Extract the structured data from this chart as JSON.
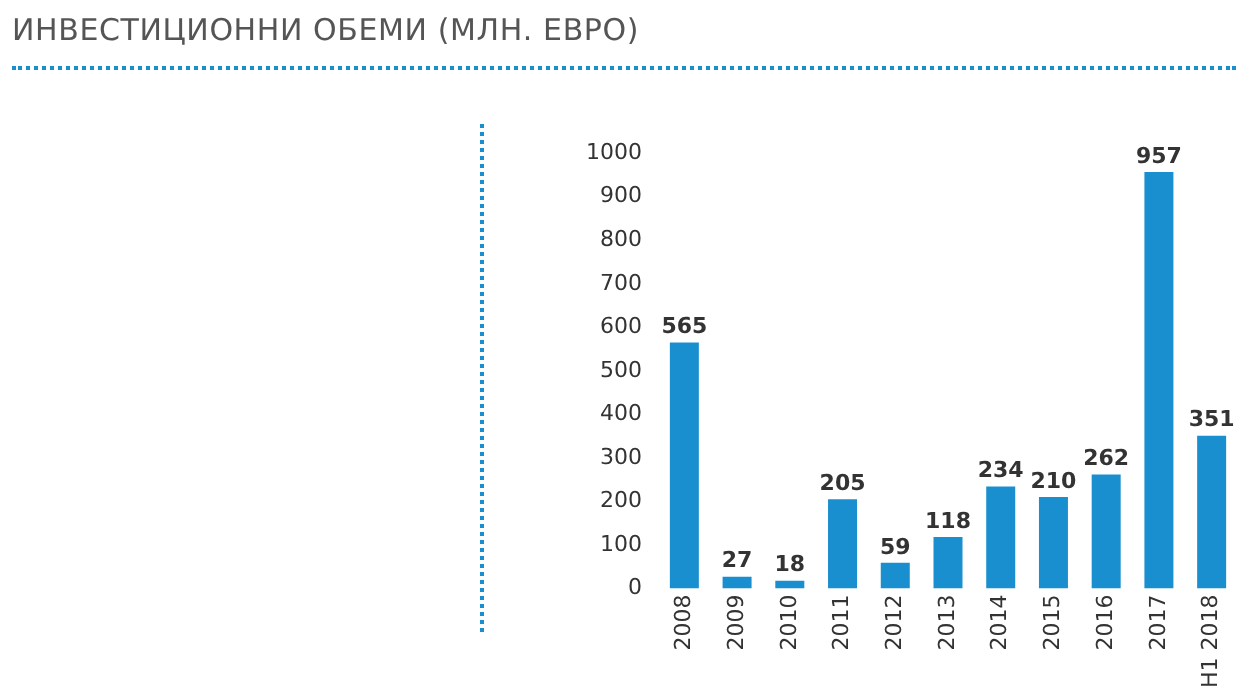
{
  "chart_data": {
    "type": "bar",
    "title": "ИНВЕСТИЦИОННИ ОБЕМИ (МЛН. ЕВРО)",
    "categories": [
      "2008",
      "2009",
      "2010",
      "2011",
      "2012",
      "2013",
      "2014",
      "2015",
      "2016",
      "2017",
      "H1 2018"
    ],
    "values": [
      565,
      27,
      18,
      205,
      59,
      118,
      234,
      210,
      262,
      957,
      351
    ],
    "color": "#1a8fd0",
    "ylim": [
      0,
      1000
    ],
    "yticks": [
      0,
      100,
      200,
      300,
      400,
      500,
      600,
      700,
      800,
      900,
      1000
    ],
    "grid": false,
    "data_labels": true
  }
}
